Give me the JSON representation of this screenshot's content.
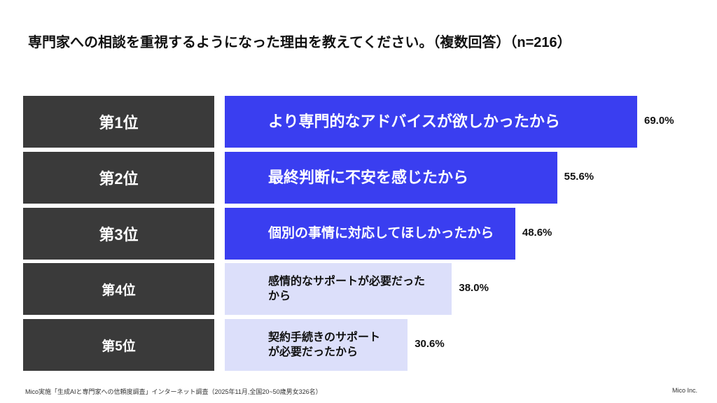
{
  "chart_data": {
    "type": "bar",
    "orientation": "horizontal",
    "title": "専門家への相談を重視するようになった理由を教えてください。（複数回答）（n=216）",
    "ranks": [
      "第1位",
      "第2位",
      "第3位",
      "第4位",
      "第5位"
    ],
    "categories": [
      "より専門的なアドバイスが欲しかったから",
      "最終判断に不安を感じたから",
      "個別の事情に対応してほしかったから",
      "感情的なサポートが必要だったから",
      "契約手続きのサポートが必要だったから"
    ],
    "values": [
      69.0,
      55.6,
      48.6,
      38.0,
      30.6
    ],
    "value_labels": [
      "69.0%",
      "55.6%",
      "48.6%",
      "38.0%",
      "30.6%"
    ],
    "colors": [
      "#3a3ef0",
      "#3a3ef0",
      "#3a3ef0",
      "#dcdffa",
      "#dcdffa"
    ],
    "source": "Mico実施「生成AIと専門家への信頼度調査」インターネット調査（2025年11月,全国20~50歳男女326名）",
    "brand": "Mico Inc."
  }
}
